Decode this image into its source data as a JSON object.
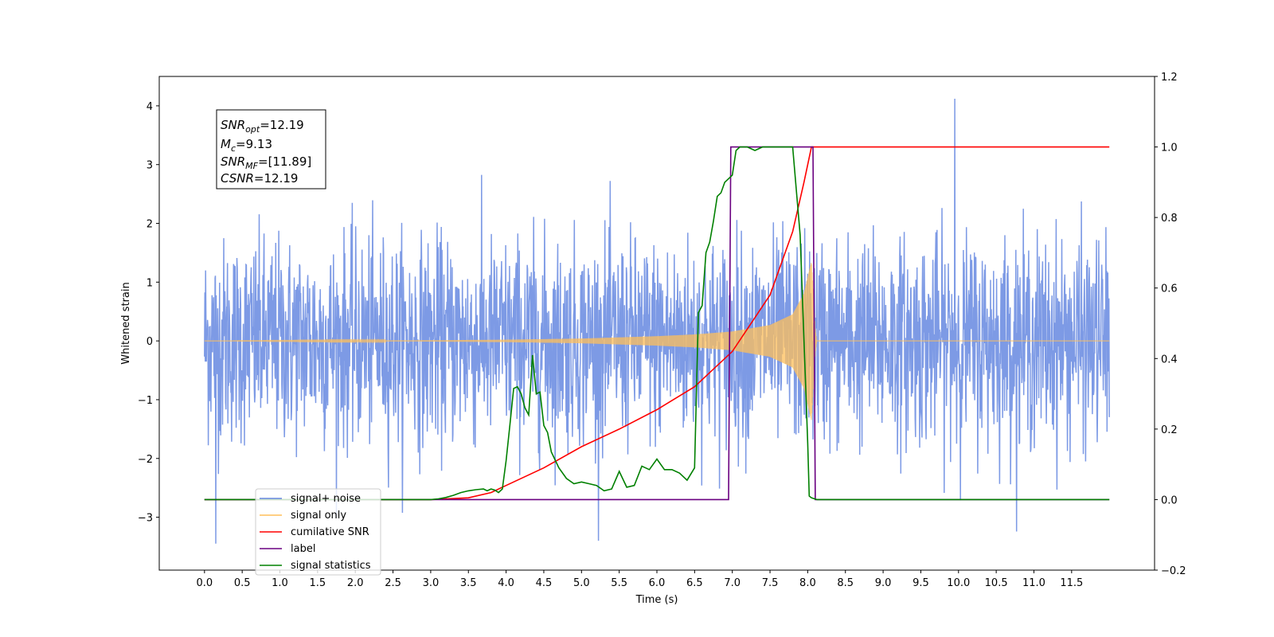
{
  "chart_data": {
    "type": "line",
    "title": "",
    "xlabel": "Time (s)",
    "ylabel": "Whitened strain",
    "xlim": [
      -0.6,
      12.6
    ],
    "ylim": [
      -3.9,
      4.5
    ],
    "y2lim": [
      -0.2,
      1.2
    ],
    "x_ticks": [
      0.0,
      0.5,
      1.0,
      1.5,
      2.0,
      2.5,
      3.0,
      3.5,
      4.0,
      4.5,
      5.0,
      5.5,
      6.0,
      6.5,
      7.0,
      7.5,
      8.0,
      8.5,
      9.0,
      9.5,
      10.0,
      10.5,
      11.0,
      11.5
    ],
    "x_tick_labels": [
      "0.0",
      "0.5",
      "1.0",
      "1.5",
      "2.0",
      "2.5",
      "3.0",
      "3.5",
      "4.0",
      "4.5",
      "5.0",
      "5.5",
      "6.0",
      "6.5",
      "7.0",
      "7.5",
      "8.0",
      "8.5",
      "9.0",
      "9.5",
      "10.0",
      "10.5",
      "11.0",
      "11.5"
    ],
    "y_ticks": [
      -3,
      -2,
      -1,
      0,
      1,
      2,
      3,
      4
    ],
    "y_tick_labels": [
      "−3",
      "−2",
      "−1",
      "0",
      "1",
      "2",
      "3",
      "4"
    ],
    "y2_ticks": [
      -0.2,
      0.0,
      0.2,
      0.4,
      0.6,
      0.8,
      1.0,
      1.2
    ],
    "y2_tick_labels": [
      "−0.2",
      "0.0",
      "0.2",
      "0.4",
      "0.6",
      "0.8",
      "1.0",
      "1.2"
    ],
    "grid": false,
    "legend_placement": "lower-left",
    "annotation": {
      "lines": [
        {
          "sym": "SNR",
          "sub": "opt",
          "value": "=12.19"
        },
        {
          "sym": "M",
          "sub": "c",
          "value": "=9.13"
        },
        {
          "sym": "SNR",
          "sub": "MF",
          "value": "=[11.89]"
        },
        {
          "sym": "CSNR",
          "sub": "",
          "value": "=12.19"
        }
      ]
    },
    "noise_series": {
      "name": "signal+ noise",
      "axis": "left",
      "color": "#6688e0",
      "x_range": [
        0.0,
        12.0
      ],
      "typical_amplitude": 1.6,
      "max": 4.12,
      "min": -3.45
    },
    "chirp_series": {
      "name": "signal only",
      "axis": "left",
      "color": "#ffbf5a",
      "x_range": [
        0.0,
        12.0
      ],
      "merger_time": 8.05,
      "ringdown_end": 8.12,
      "envelope": [
        [
          0.0,
          0.0
        ],
        [
          3.0,
          0.01
        ],
        [
          4.0,
          0.02
        ],
        [
          5.0,
          0.04
        ],
        [
          6.0,
          0.08
        ],
        [
          6.5,
          0.11
        ],
        [
          7.0,
          0.16
        ],
        [
          7.5,
          0.27
        ],
        [
          7.8,
          0.45
        ],
        [
          7.95,
          0.8
        ],
        [
          8.05,
          1.35
        ],
        [
          8.1,
          0.2
        ],
        [
          8.12,
          0.0
        ],
        [
          12.0,
          0.0
        ]
      ]
    },
    "series": [
      {
        "name": "cumilative SNR",
        "axis": "right",
        "color": "#ff0000",
        "x": [
          0.0,
          3.0,
          3.5,
          3.8,
          4.0,
          4.5,
          5.0,
          5.5,
          6.0,
          6.5,
          7.0,
          7.5,
          7.8,
          7.95,
          8.05,
          8.06,
          12.0
        ],
        "y": [
          0.0,
          0.0,
          0.005,
          0.02,
          0.04,
          0.09,
          0.15,
          0.2,
          0.255,
          0.32,
          0.42,
          0.58,
          0.76,
          0.9,
          1.0,
          1.0,
          1.0
        ]
      },
      {
        "name": "label",
        "axis": "right",
        "color": "#6a0080",
        "x": [
          0.0,
          6.95,
          6.98,
          8.07,
          8.1,
          12.0
        ],
        "y": [
          0.0,
          0.0,
          1.0,
          1.0,
          0.0,
          0.0
        ]
      },
      {
        "name": "signal statistics",
        "axis": "right",
        "color": "#008000",
        "x": [
          0.0,
          3.0,
          3.1,
          3.2,
          3.3,
          3.4,
          3.5,
          3.6,
          3.7,
          3.75,
          3.8,
          3.85,
          3.9,
          3.95,
          4.0,
          4.05,
          4.1,
          4.15,
          4.2,
          4.25,
          4.3,
          4.35,
          4.4,
          4.45,
          4.5,
          4.55,
          4.6,
          4.7,
          4.8,
          4.9,
          5.0,
          5.1,
          5.2,
          5.3,
          5.4,
          5.5,
          5.6,
          5.7,
          5.8,
          5.9,
          6.0,
          6.1,
          6.2,
          6.3,
          6.4,
          6.5,
          6.55,
          6.6,
          6.65,
          6.7,
          6.75,
          6.8,
          6.85,
          6.9,
          6.95,
          7.0,
          7.05,
          7.1,
          7.15,
          7.2,
          7.3,
          7.4,
          7.5,
          7.6,
          7.7,
          7.8,
          7.9,
          8.0,
          8.02,
          8.05,
          8.08,
          8.12,
          8.2,
          12.0
        ],
        "y": [
          0.0,
          0.0,
          0.002,
          0.006,
          0.012,
          0.02,
          0.025,
          0.028,
          0.03,
          0.025,
          0.03,
          0.027,
          0.02,
          0.03,
          0.11,
          0.21,
          0.315,
          0.32,
          0.3,
          0.26,
          0.24,
          0.41,
          0.3,
          0.305,
          0.21,
          0.19,
          0.135,
          0.09,
          0.06,
          0.045,
          0.05,
          0.045,
          0.04,
          0.025,
          0.03,
          0.08,
          0.035,
          0.04,
          0.095,
          0.085,
          0.115,
          0.085,
          0.085,
          0.075,
          0.055,
          0.09,
          0.53,
          0.55,
          0.7,
          0.73,
          0.79,
          0.86,
          0.87,
          0.9,
          0.91,
          0.92,
          0.99,
          1.0,
          1.0,
          1.0,
          0.99,
          1.0,
          1.0,
          1.0,
          1.0,
          1.0,
          0.75,
          0.16,
          0.01,
          0.005,
          0.003,
          0.0,
          0.0,
          0.0
        ]
      }
    ],
    "legend": [
      {
        "name": "signal+ noise",
        "color": "#6688e0"
      },
      {
        "name": "signal only",
        "color": "#ffbf5a"
      },
      {
        "name": "cumilative SNR",
        "color": "#ff0000"
      },
      {
        "name": "label",
        "color": "#6a0080"
      },
      {
        "name": "signal statistics",
        "color": "#008000"
      }
    ]
  }
}
